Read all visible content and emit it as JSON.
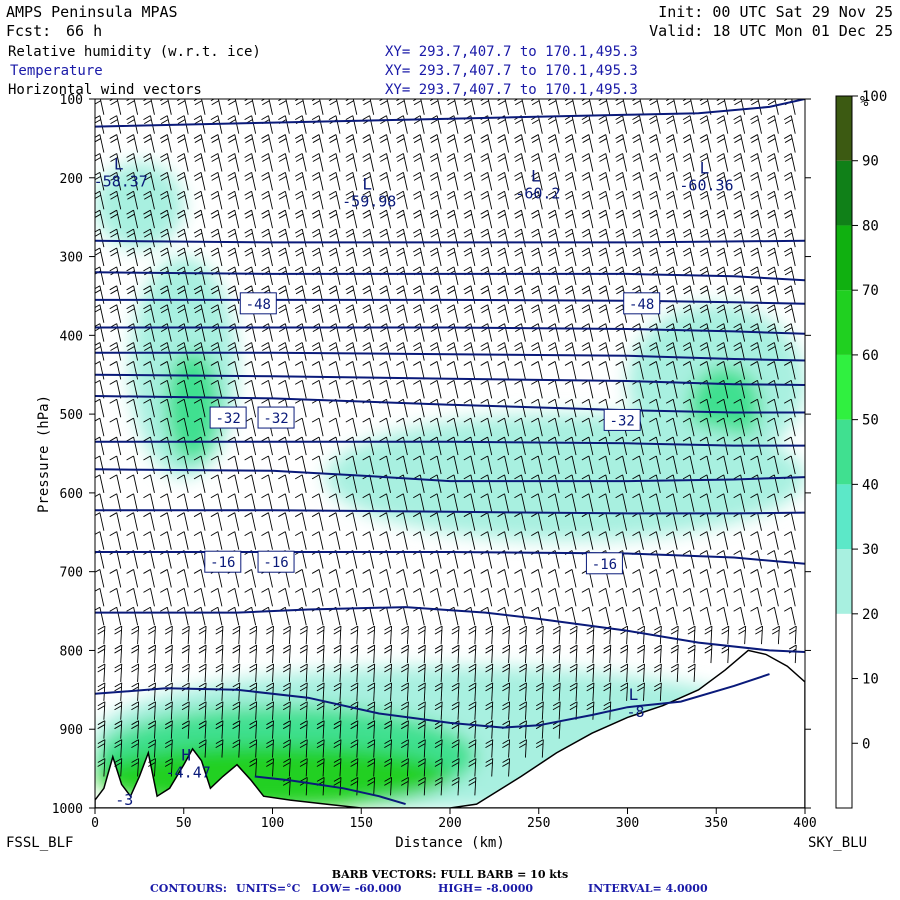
{
  "header": {
    "model": "AMPS Peninsula MPAS",
    "init": "Init: 00 UTC Sat 29 Nov 25",
    "fcst_label": "Fcst:",
    "fcst_value": "66 h",
    "valid": "Valid: 18 UTC Mon 01 Dec 25",
    "fields": [
      {
        "name": "Relative humidity (w.r.t. ice)",
        "xy": "XY= 293.7,407.7 to 170.1,495.3",
        "color": "#000000"
      },
      {
        "name": "Temperature",
        "xy": "XY= 293.7,407.7 to 170.1,495.3",
        "color": "#1a1aa8"
      },
      {
        "name": "Horizontal wind vectors",
        "xy": "XY= 293.7,407.7 to 170.1,495.3",
        "color": "#000000"
      }
    ]
  },
  "footer": {
    "left_station": "FSSL_BLF",
    "right_station": "SKY_BLU",
    "barb_note": "BARB VECTORS:  FULL BARB = 10 kts",
    "contours_label": "CONTOURS:",
    "contours_units": "UNITS=°C",
    "contours_low": "LOW= -60.000",
    "contours_high": "HIGH= -8.0000",
    "contours_interval": "INTERVAL=    4.0000"
  },
  "colors": {
    "contour": "#0a1a7a",
    "terrain": "#ffffff",
    "barb": "#000000",
    "colorbar": [
      "#ffffff",
      "#ffffff",
      "#ffffff",
      "#a8f0e0",
      "#5ce8c8",
      "#40e090",
      "#30f040",
      "#20d020",
      "#10b010",
      "#108018",
      "#3c5a12"
    ]
  },
  "chart_data": {
    "type": "cross-section",
    "x_axis": {
      "label": "Distance (km)",
      "range": [
        0,
        400
      ],
      "ticks": [
        0,
        50,
        100,
        150,
        200,
        250,
        300,
        350,
        400
      ]
    },
    "y_axis": {
      "label": "Pressure (hPa)",
      "range": [
        1000,
        100
      ],
      "ticks": [
        100,
        200,
        300,
        400,
        500,
        600,
        700,
        800,
        900,
        1000
      ]
    },
    "colorbar": {
      "unit": "%",
      "ticks": [
        0,
        10,
        20,
        30,
        40,
        50,
        60,
        70,
        80,
        90,
        100
      ]
    },
    "terrain_surface_hpa": [
      [
        0,
        990
      ],
      [
        5,
        975
      ],
      [
        10,
        935
      ],
      [
        15,
        970
      ],
      [
        20,
        985
      ],
      [
        25,
        960
      ],
      [
        30,
        930
      ],
      [
        35,
        985
      ],
      [
        42,
        975
      ],
      [
        50,
        945
      ],
      [
        55,
        925
      ],
      [
        60,
        940
      ],
      [
        65,
        975
      ],
      [
        72,
        960
      ],
      [
        80,
        945
      ],
      [
        88,
        965
      ],
      [
        95,
        985
      ],
      [
        110,
        990
      ],
      [
        130,
        995
      ],
      [
        150,
        1000
      ],
      [
        175,
        1000
      ],
      [
        200,
        1000
      ],
      [
        215,
        995
      ],
      [
        240,
        960
      ],
      [
        260,
        930
      ],
      [
        280,
        905
      ],
      [
        300,
        885
      ],
      [
        320,
        870
      ],
      [
        340,
        850
      ],
      [
        355,
        825
      ],
      [
        368,
        800
      ],
      [
        378,
        805
      ],
      [
        390,
        820
      ],
      [
        400,
        840
      ]
    ],
    "temperature_contours_hpa": [
      [
        [
          0,
          135
        ],
        [
          100,
          130
        ],
        [
          200,
          125
        ],
        [
          300,
          120
        ],
        [
          340,
          118
        ],
        [
          380,
          110
        ],
        [
          400,
          100
        ]
      ],
      [
        [
          0,
          280
        ],
        [
          100,
          282
        ],
        [
          200,
          282
        ],
        [
          300,
          282
        ],
        [
          400,
          280
        ]
      ],
      [
        [
          0,
          320
        ],
        [
          100,
          322
        ],
        [
          200,
          322
        ],
        [
          300,
          322
        ],
        [
          360,
          325
        ],
        [
          400,
          330
        ]
      ],
      [
        [
          0,
          355
        ],
        [
          100,
          355
        ],
        [
          200,
          355
        ],
        [
          300,
          356
        ],
        [
          360,
          358
        ],
        [
          400,
          360
        ]
      ],
      [
        [
          0,
          390
        ],
        [
          100,
          390
        ],
        [
          200,
          390
        ],
        [
          300,
          392
        ],
        [
          360,
          395
        ],
        [
          400,
          398
        ]
      ],
      [
        [
          0,
          422
        ],
        [
          100,
          422
        ],
        [
          200,
          424
        ],
        [
          300,
          426
        ],
        [
          360,
          430
        ],
        [
          400,
          432
        ]
      ],
      [
        [
          0,
          450
        ],
        [
          100,
          452
        ],
        [
          200,
          455
        ],
        [
          300,
          458
        ],
        [
          360,
          462
        ],
        [
          400,
          463
        ]
      ],
      [
        [
          0,
          477
        ],
        [
          100,
          480
        ],
        [
          200,
          488
        ],
        [
          300,
          495
        ],
        [
          360,
          498
        ],
        [
          400,
          498
        ]
      ],
      [
        [
          0,
          535
        ],
        [
          100,
          535
        ],
        [
          200,
          535
        ],
        [
          300,
          537
        ],
        [
          360,
          540
        ],
        [
          400,
          540
        ]
      ],
      [
        [
          0,
          570
        ],
        [
          100,
          572
        ],
        [
          150,
          578
        ],
        [
          200,
          585
        ],
        [
          300,
          585
        ],
        [
          360,
          583
        ],
        [
          400,
          580
        ]
      ],
      [
        [
          0,
          622
        ],
        [
          100,
          622
        ],
        [
          200,
          624
        ],
        [
          300,
          626
        ],
        [
          360,
          626
        ],
        [
          400,
          625
        ]
      ],
      [
        [
          0,
          675
        ],
        [
          100,
          675
        ],
        [
          200,
          675
        ],
        [
          300,
          677
        ],
        [
          360,
          682
        ],
        [
          400,
          690
        ]
      ],
      [
        [
          0,
          752
        ],
        [
          80,
          752
        ],
        [
          120,
          748
        ],
        [
          175,
          745
        ],
        [
          220,
          752
        ],
        [
          250,
          760
        ],
        [
          300,
          775
        ],
        [
          340,
          790
        ],
        [
          380,
          800
        ],
        [
          400,
          802
        ]
      ],
      [
        [
          0,
          855
        ],
        [
          40,
          848
        ],
        [
          80,
          850
        ],
        [
          120,
          860
        ],
        [
          160,
          880
        ],
        [
          200,
          892
        ],
        [
          230,
          898
        ],
        [
          250,
          895
        ],
        [
          280,
          882
        ],
        [
          300,
          872
        ],
        [
          330,
          865
        ],
        [
          360,
          845
        ],
        [
          380,
          830
        ]
      ],
      [
        [
          90,
          960
        ],
        [
          110,
          965
        ],
        [
          140,
          975
        ],
        [
          160,
          985
        ],
        [
          175,
          995
        ]
      ]
    ],
    "temperature_labels": [
      {
        "text": "-48",
        "x": 92,
        "p": 360
      },
      {
        "text": "-48",
        "x": 308,
        "p": 360
      },
      {
        "text": "-32",
        "x": 75,
        "p": 505
      },
      {
        "text": "-32",
        "x": 102,
        "p": 505
      },
      {
        "text": "-32",
        "x": 297,
        "p": 508
      },
      {
        "text": "-16",
        "x": 72,
        "p": 688
      },
      {
        "text": "-16",
        "x": 102,
        "p": 688
      },
      {
        "text": "-16",
        "x": 287,
        "p": 690
      }
    ],
    "extrema": [
      {
        "symbol": "L",
        "value": "-58.37",
        "x": 10,
        "p": 205
      },
      {
        "symbol": "L",
        "value": "-59.98",
        "x": 150,
        "p": 230
      },
      {
        "symbol": "L",
        "value": "-60.2",
        "x": 245,
        "p": 220
      },
      {
        "symbol": "L",
        "value": "-60.36",
        "x": 340,
        "p": 210
      },
      {
        "symbol": "H",
        "value": "-4.47",
        "x": 48,
        "p": 955
      },
      {
        "symbol": "",
        "value": "-3",
        "x": 12,
        "p": 990
      },
      {
        "symbol": "L",
        "value": "-8",
        "x": 300,
        "p": 878
      }
    ],
    "rh_regions": [
      {
        "rh": 35,
        "x": [
          0,
          400
        ],
        "p": [
          820,
          1000
        ]
      },
      {
        "rh": 55,
        "x": [
          0,
          215
        ],
        "p": [
          870,
          1000
        ]
      },
      {
        "rh": 75,
        "x": [
          0,
          200
        ],
        "p": [
          920,
          1000
        ]
      },
      {
        "rh": 35,
        "x": [
          20,
          80
        ],
        "p": [
          300,
          580
        ]
      },
      {
        "rh": 55,
        "x": [
          40,
          70
        ],
        "p": [
          420,
          560
        ]
      },
      {
        "rh": 35,
        "x": [
          300,
          400
        ],
        "p": [
          360,
          560
        ]
      },
      {
        "rh": 55,
        "x": [
          335,
          375
        ],
        "p": [
          440,
          540
        ]
      },
      {
        "rh": 35,
        "x": [
          130,
          400
        ],
        "p": [
          500,
          660
        ]
      },
      {
        "rh": 35,
        "x": [
          0,
          50
        ],
        "p": [
          180,
          290
        ]
      }
    ]
  }
}
